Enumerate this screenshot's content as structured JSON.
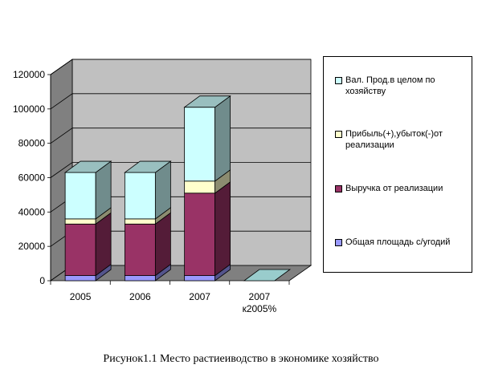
{
  "caption": "Рисунок1.1 Место растиеиводство в экономике хозяйство",
  "chart_data": {
    "type": "bar",
    "stacked": true,
    "three_d": true,
    "categories": [
      "2005",
      "2006",
      "2007",
      "2007 к2005%"
    ],
    "series": [
      {
        "name": "Общая площадь с/угодий",
        "values": [
          3000,
          3000,
          3000,
          0
        ],
        "color": "#9999ff"
      },
      {
        "name": "Выручка от реализации",
        "values": [
          30000,
          30000,
          48000,
          0
        ],
        "color": "#993366"
      },
      {
        "name": "Прибыль(+),убыток(-)от реализации",
        "values": [
          3000,
          3000,
          7000,
          0
        ],
        "color": "#ffffcc"
      },
      {
        "name": "Вал. Прод.в целом по хозяйству",
        "values": [
          27000,
          27000,
          43000,
          0
        ],
        "color": "#ccffff"
      }
    ],
    "y_ticks": [
      "0",
      "20000",
      "40000",
      "60000",
      "80000",
      "100000",
      "120000"
    ],
    "ylim": [
      0,
      120000
    ],
    "grid": true,
    "legend_position": "right",
    "wall_color": "#c0c0c0",
    "floor_color": "#808080",
    "zero_bar_color": "#99cccc"
  }
}
